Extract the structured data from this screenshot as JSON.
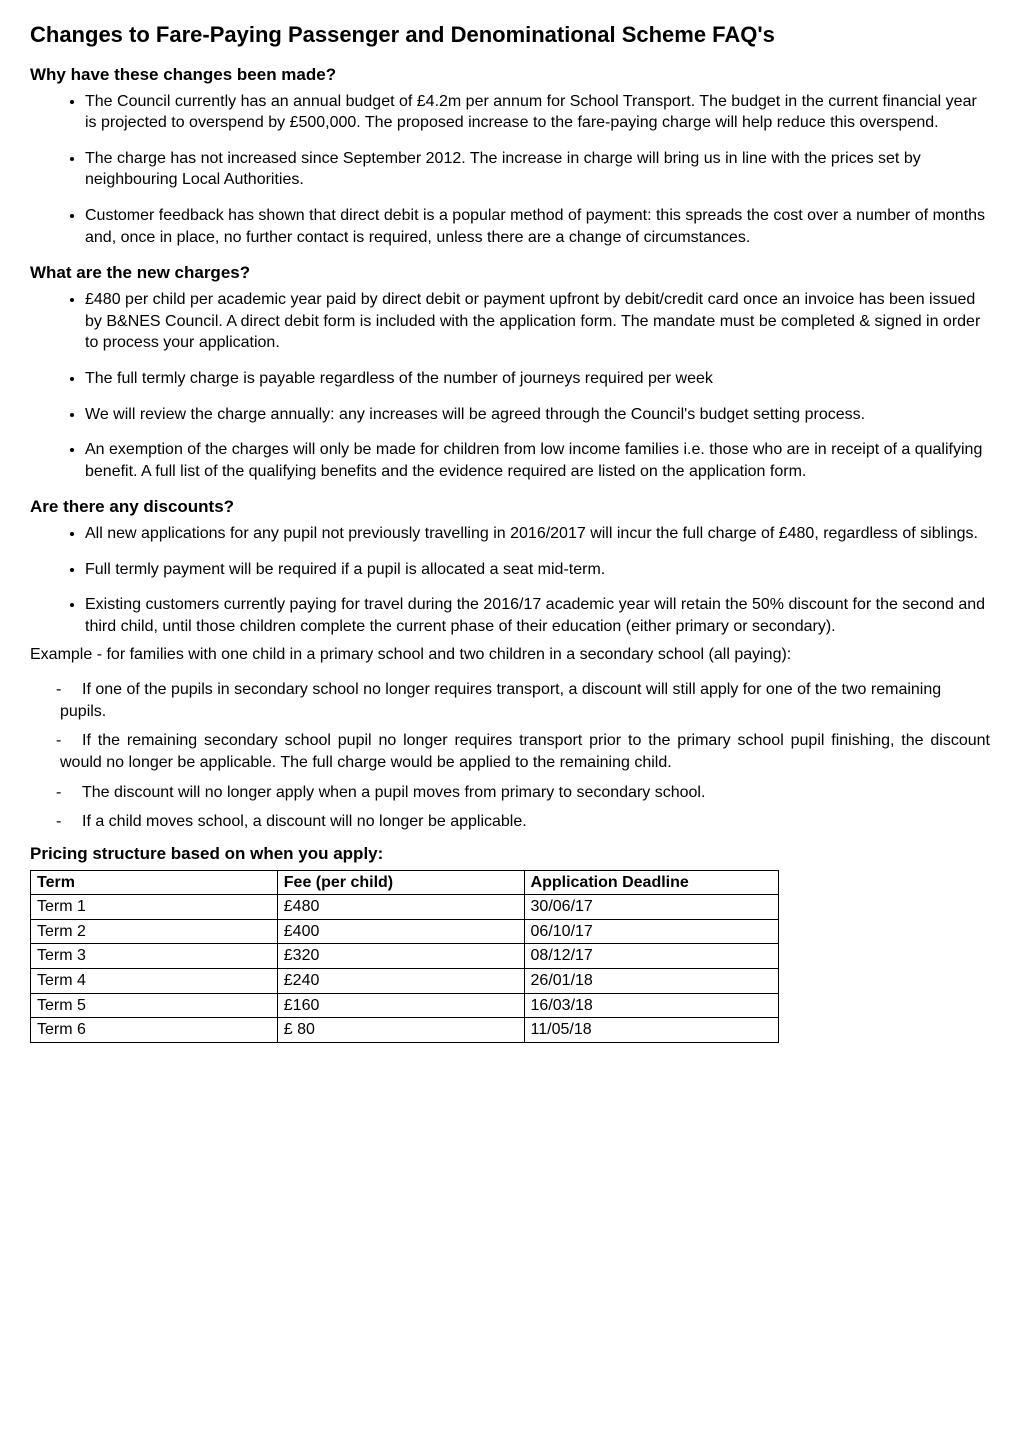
{
  "title": "Changes to Fare-Paying Passenger and Denominational Scheme FAQ's",
  "sections": {
    "why": {
      "heading": "Why have these changes been made?",
      "items": [
        "The Council currently has an annual budget of £4.2m per annum for School Transport. The budget in the current financial year is projected to overspend by £500,000. The proposed increase to the fare-paying charge will help reduce this overspend.",
        "The charge has not increased since September 2012. The increase in charge will bring us in line with the prices set by neighbouring Local Authorities.",
        "Customer feedback has shown that direct debit is a popular method of payment: this spreads the cost over a number of months and, once in place, no further contact is required, unless there are a change of circumstances."
      ]
    },
    "charges": {
      "heading": "What are the new charges?",
      "items": [
        "£480 per child per academic year paid by direct debit or payment upfront by debit/credit card once an invoice has been issued by B&NES Council.  A direct debit form is included with the application form. The mandate must be completed & signed in order to process your application.",
        "The full termly charge is payable regardless of the number of journeys required per week",
        "We will review the charge annually: any increases will be agreed through the Council's budget setting process.",
        "An exemption of the charges will only be made for children from low income families i.e. those who are in receipt of a qualifying benefit. A full list of the qualifying benefits and the evidence required are listed on the application form."
      ]
    },
    "discounts": {
      "heading": "Are there any discounts?",
      "items": [
        "All new applications for any pupil not previously travelling in 2016/2017 will incur the full charge of £480, regardless of siblings.",
        "Full termly payment will be required if a pupil is allocated a seat mid-term.",
        "Existing customers currently paying for travel during the 2016/17 academic year will retain the 50% discount for the second and third child, until those children complete the current phase of their education (either primary or secondary)."
      ],
      "example_intro": "Example - for families with one child in a primary school and two children in a secondary school (all paying):",
      "example_items": [
        "If one of the pupils in secondary school no longer requires transport, a discount will still apply for one of the two remaining pupils.",
        "If the remaining secondary school pupil no longer requires transport prior to the primary school pupil finishing, the discount would no longer be applicable. The full charge would be applied to the remaining child.",
        "The discount will no longer apply when a pupil moves from primary to secondary school.",
        "If a child moves school, a discount will no longer be applicable."
      ]
    },
    "pricing": {
      "heading": "Pricing structure based on when you apply:",
      "columns": [
        "Term",
        "Fee (per child)",
        "Application Deadline"
      ],
      "rows": [
        [
          "Term 1",
          "£480",
          "30/06/17"
        ],
        [
          "Term 2",
          "£400",
          "06/10/17"
        ],
        [
          "Term 3",
          "£320",
          "08/12/17"
        ],
        [
          "Term 4",
          "£240",
          "26/01/18"
        ],
        [
          "Term 5",
          "£160",
          "16/03/18"
        ],
        [
          "Term 6",
          "£ 80",
          "11/05/18"
        ]
      ],
      "col_widths": [
        "33%",
        "33%",
        "34%"
      ]
    }
  }
}
